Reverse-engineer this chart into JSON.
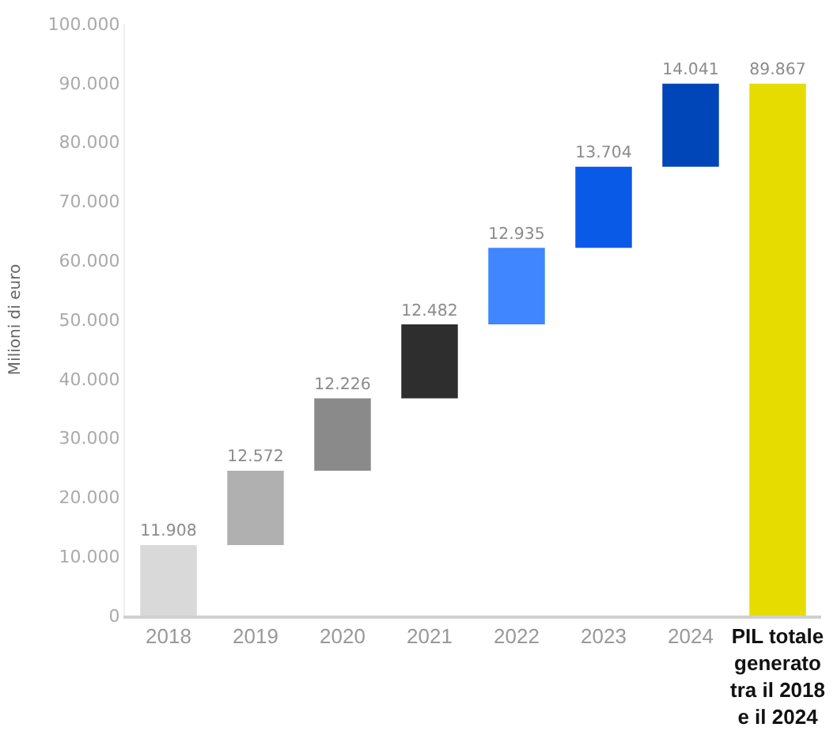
{
  "chart_data": {
    "type": "bar",
    "ylabel": "Milioni di euro",
    "categories": [
      "2018",
      "2019",
      "2020",
      "2021",
      "2022",
      "2023",
      "2024",
      "PIL totale generato tra il 2018 e il 2024"
    ],
    "values": [
      11908,
      12572,
      12226,
      12482,
      12935,
      13704,
      14041,
      89867
    ],
    "base": [
      0,
      11908,
      24480,
      36706,
      49188,
      62123,
      75827,
      0
    ],
    "colors": [
      "#d9d9d9",
      "#b0b0b0",
      "#8a8a8a",
      "#2e2e2e",
      "#3f86ff",
      "#0a5ae8",
      "#0046b8",
      "#e6dc00"
    ],
    "value_labels": [
      "11.908",
      "12.572",
      "12.226",
      "12.482",
      "12.935",
      "13.704",
      "14.041",
      "89.867"
    ],
    "ylim": [
      0,
      100000
    ],
    "legend": false,
    "yticks": [
      0,
      {
        "value": 10000,
        "label": "10.000"
      },
      {
        "value": 20000,
        "label": "20.000"
      },
      {
        "value": 30000,
        "label": "30.000"
      },
      {
        "value": 40000,
        "label": "40.000"
      },
      {
        "value": 50000,
        "label": "50.000"
      },
      {
        "value": 60000,
        "label": "60.000"
      },
      {
        "value": 70000,
        "label": "70.000"
      },
      {
        "value": 80000,
        "label": "80.000"
      },
      {
        "value": 90000,
        "label": "90.000"
      },
      {
        "value": 100000,
        "label": "100.000"
      }
    ]
  }
}
